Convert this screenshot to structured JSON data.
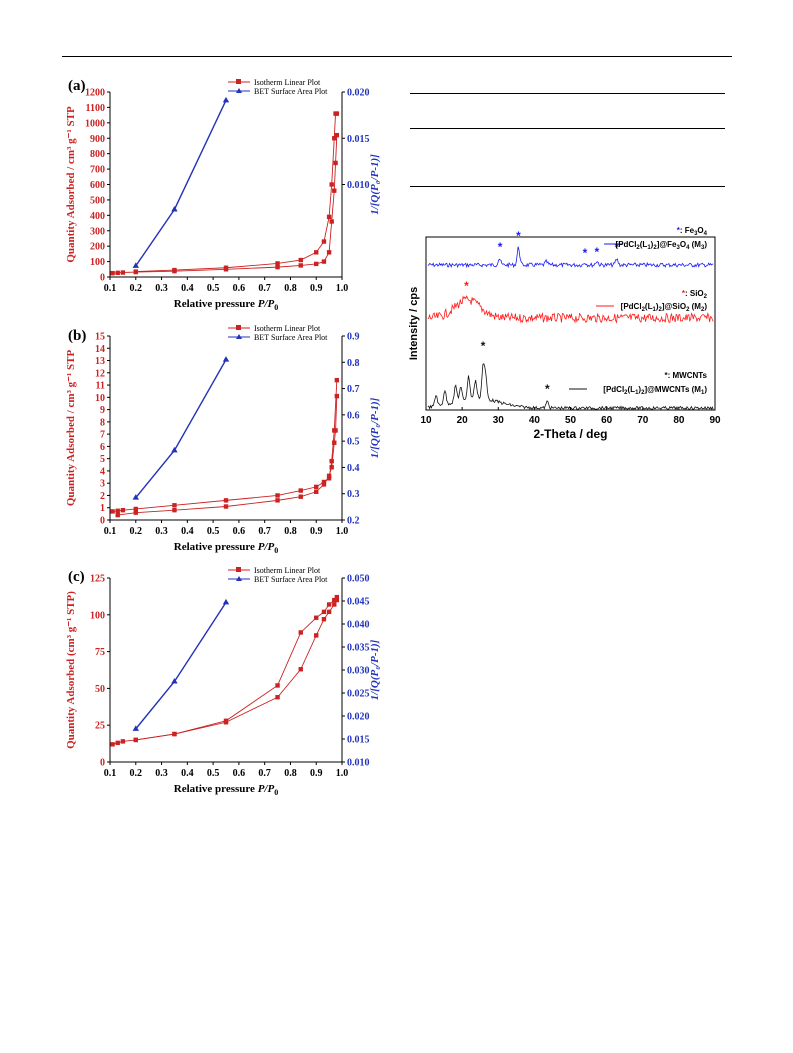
{
  "colors": {
    "isotherm": "#cc2222",
    "bet": "#2233bb",
    "xrd_m3": "#1a1aff",
    "xrd_m2": "#ff1a1a",
    "xrd_m1": "#111111",
    "right_axis": "#2233bb",
    "left_axis": "#cc2222"
  },
  "chart_data": [
    {
      "id": "a",
      "type": "line",
      "panel_label": "(a)",
      "xlabel_main": "Relative pressure",
      "xlabel_var": "P/P",
      "xlabel_sub": "0",
      "ylabel": "Quantity Adsorbed / cm³ g⁻¹ STP",
      "y2label": "1/[Q(P₀/P-1)]",
      "xlim": [
        0.1,
        1.0
      ],
      "xticks": [
        "0.1",
        "0.2",
        "0.3",
        "0.4",
        "0.5",
        "0.6",
        "0.7",
        "0.8",
        "0.9",
        "1.0"
      ],
      "ylim": [
        0,
        1200
      ],
      "yticks": [
        "0",
        "100",
        "200",
        "300",
        "400",
        "500",
        "600",
        "700",
        "800",
        "900",
        "1000",
        "1100",
        "1200"
      ],
      "y2lim": [
        0,
        0.02
      ],
      "y2ticks": [
        "0.010",
        "0.015",
        "0.020"
      ],
      "y2tick_values": [
        0.01,
        0.015,
        0.02
      ],
      "legend": [
        "Isotherm Linear Plot",
        "BET Surface Area Plot"
      ],
      "series": [
        {
          "name": "Isotherm Linear Plot",
          "axis": "left",
          "x": [
            0.11,
            0.13,
            0.15,
            0.2,
            0.35,
            0.55,
            0.75,
            0.84,
            0.9,
            0.93,
            0.95,
            0.96,
            0.97,
            0.975,
            0.98
          ],
          "y": [
            25,
            27,
            29,
            32,
            38,
            50,
            64,
            75,
            85,
            100,
            160,
            360,
            560,
            740,
            920
          ]
        },
        {
          "name": "Isotherm Linear Plot",
          "axis": "left",
          "x": [
            0.98,
            0.975,
            0.97,
            0.96,
            0.95,
            0.93,
            0.9,
            0.84,
            0.75,
            0.55,
            0.35,
            0.2
          ],
          "y": [
            1060,
            1060,
            900,
            600,
            390,
            230,
            160,
            110,
            88,
            60,
            45,
            35
          ]
        },
        {
          "name": "BET Surface Area Plot",
          "axis": "right",
          "x": [
            0.2,
            0.35,
            0.55
          ],
          "y": [
            0.0012,
            0.0073,
            0.0191
          ]
        }
      ]
    },
    {
      "id": "b",
      "type": "line",
      "panel_label": "(b)",
      "xlabel_main": "Relative pressure",
      "xlabel_var": "P/P",
      "xlabel_sub": "0",
      "ylabel": "Quantity Adsorbed / cm³ g⁻¹ STP",
      "y2label": "1/[Q(P₀/P-1)]",
      "xlim": [
        0.1,
        1.0
      ],
      "xticks": [
        "0.1",
        "0.2",
        "0.3",
        "0.4",
        "0.5",
        "0.6",
        "0.7",
        "0.8",
        "0.9",
        "1.0"
      ],
      "ylim": [
        0,
        15
      ],
      "yticks": [
        "0",
        "1",
        "2",
        "3",
        "4",
        "5",
        "6",
        "7",
        "8",
        "9",
        "10",
        "11",
        "12",
        "13",
        "14",
        "15"
      ],
      "y2lim": [
        0.2,
        0.9
      ],
      "y2ticks": [
        "0.2",
        "0.3",
        "0.4",
        "0.5",
        "0.6",
        "0.7",
        "0.8",
        "0.9"
      ],
      "y2tick_values": [
        0.2,
        0.3,
        0.4,
        0.5,
        0.6,
        0.7,
        0.8,
        0.9
      ],
      "legend": [
        "Isotherm Linear Plot",
        "BET Surface Area Plot"
      ],
      "series": [
        {
          "name": "Isotherm Linear Plot",
          "axis": "left",
          "x": [
            0.13,
            0.2,
            0.35,
            0.55,
            0.75,
            0.84,
            0.9,
            0.93,
            0.95,
            0.96,
            0.97,
            0.975,
            0.98
          ],
          "y": [
            0.4,
            0.6,
            0.8,
            1.1,
            1.6,
            1.9,
            2.3,
            2.9,
            3.6,
            4.3,
            6.3,
            7.3,
            10.1
          ]
        },
        {
          "name": "Isotherm Linear Plot",
          "axis": "left",
          "x": [
            0.98,
            0.97,
            0.96,
            0.95,
            0.93,
            0.9,
            0.84,
            0.75,
            0.55,
            0.35,
            0.2,
            0.15,
            0.13,
            0.11
          ],
          "y": [
            11.4,
            7.3,
            4.8,
            3.4,
            3.1,
            2.7,
            2.4,
            2.0,
            1.6,
            1.2,
            0.9,
            0.8,
            0.75,
            0.7
          ]
        },
        {
          "name": "BET Surface Area Plot",
          "axis": "right",
          "x": [
            0.2,
            0.35,
            0.55
          ],
          "y": [
            0.285,
            0.465,
            0.81
          ]
        }
      ]
    },
    {
      "id": "c",
      "type": "line",
      "panel_label": "(c)",
      "xlabel_main": "Relative pressure",
      "xlabel_var": "P/P",
      "xlabel_sub": "0",
      "ylabel": "Quantity Adsorbed (cm³ g⁻¹ STP)",
      "y2label": "1/[Q(P₀/P-1)]",
      "xlim": [
        0.1,
        1.0
      ],
      "xticks": [
        "0.1",
        "0.2",
        "0.3",
        "0.4",
        "0.5",
        "0.6",
        "0.7",
        "0.8",
        "0.9",
        "1.0"
      ],
      "ylim": [
        0,
        125
      ],
      "yticks": [
        "0",
        "25",
        "50",
        "75",
        "100",
        "125"
      ],
      "y2lim": [
        0.01,
        0.05
      ],
      "y2ticks": [
        "0.010",
        "0.015",
        "0.020",
        "0.025",
        "0.030",
        "0.035",
        "0.040",
        "0.045",
        "0.050"
      ],
      "y2tick_values": [
        0.01,
        0.015,
        0.02,
        0.025,
        0.03,
        0.035,
        0.04,
        0.045,
        0.05
      ],
      "legend": [
        "Isotherm Linear Plot",
        "BET Surface Area Plot"
      ],
      "series": [
        {
          "name": "Isotherm Linear Plot",
          "axis": "left",
          "x": [
            0.11,
            0.13,
            0.15,
            0.2,
            0.35,
            0.55,
            0.75,
            0.84,
            0.9,
            0.93,
            0.95,
            0.97,
            0.98
          ],
          "y": [
            12,
            13,
            14,
            15,
            19,
            27,
            44,
            63,
            86,
            97,
            102,
            107,
            110
          ]
        },
        {
          "name": "Isotherm Linear Plot",
          "axis": "left",
          "x": [
            0.98,
            0.97,
            0.95,
            0.93,
            0.9,
            0.84,
            0.75,
            0.55,
            0.35,
            0.2
          ],
          "y": [
            112,
            110,
            107,
            102,
            98,
            88,
            52,
            28,
            19,
            15
          ]
        },
        {
          "name": "BET Surface Area Plot",
          "axis": "right",
          "x": [
            0.2,
            0.35,
            0.55
          ],
          "y": [
            0.0172,
            0.0275,
            0.0447
          ]
        }
      ]
    },
    {
      "id": "xrd",
      "type": "line",
      "xlabel": "2-Theta / deg",
      "ylabel": "Intensity / cps",
      "xlim": [
        10,
        90
      ],
      "xticks": [
        "10",
        "20",
        "30",
        "40",
        "50",
        "60",
        "70",
        "80",
        "90"
      ],
      "series": [
        {
          "name": "[PdCl2(L1)2]@Fe3O4 (M3)",
          "legend_main": "[PdCl",
          "legend_parts": [
            "[PdCl",
            "2",
            "(L",
            "1",
            ")",
            "2",
            "]@Fe",
            "3",
            "O",
            "4",
            " (M",
            "3",
            ")"
          ],
          "phase": "Fe3O4",
          "phase_label_parts": [
            "Fe",
            "3",
            "O",
            "4"
          ],
          "marks_x": [
            30.5,
            35.6,
            54,
            57.3,
            62.8
          ],
          "peaks": [
            [
              35.6,
              0.55
            ],
            [
              30.3,
              0.2
            ],
            [
              62.8,
              0.18
            ],
            [
              57.3,
              0.12
            ],
            [
              43.3,
              0.1
            ],
            [
              54,
              0.08
            ]
          ]
        },
        {
          "name": "[PdCl2(L1)2]@SiO2 (M2)",
          "legend_parts": [
            "[PdCl",
            "2",
            "(L",
            "1",
            ")",
            "2",
            "]@SiO",
            "2",
            " (M",
            "2",
            ")"
          ],
          "phase": "SiO2",
          "phase_label_parts": [
            "SiO",
            "2"
          ],
          "marks_x": [
            21.2
          ],
          "peaks": []
        },
        {
          "name": "[PdCl2(L1)2]@MWCNTs (M1)",
          "legend_parts": [
            "[PdCl",
            "2",
            "(L",
            "1",
            ")",
            "2",
            "]@MWCNTs",
            " (M",
            "1",
            ")"
          ],
          "phase": "MWCNTs",
          "phase_label_parts": [
            "MWCNTs"
          ],
          "marks_x": [
            25.8,
            43.6
          ],
          "peaks": [
            [
              25.8,
              1.0
            ],
            [
              21.8,
              0.7
            ],
            [
              18.2,
              0.5
            ],
            [
              15.2,
              0.45
            ],
            [
              12.8,
              0.35
            ],
            [
              26.5,
              0.7
            ],
            [
              43.6,
              0.2
            ],
            [
              23.7,
              0.55
            ],
            [
              19.6,
              0.4
            ]
          ]
        }
      ]
    }
  ]
}
